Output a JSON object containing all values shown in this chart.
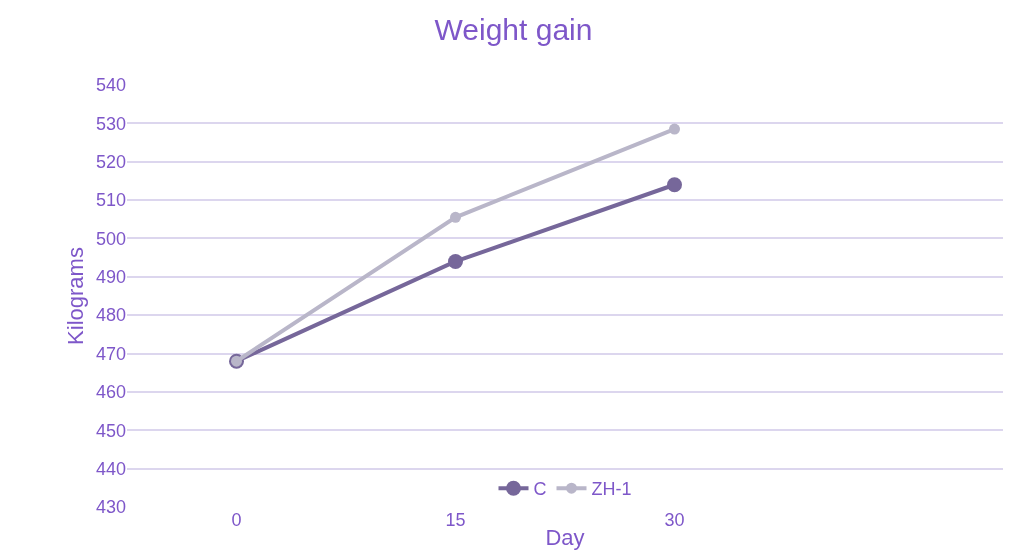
{
  "chart_data": {
    "type": "line",
    "title": "Weight gain",
    "xlabel": "Day",
    "ylabel": "Kilograms",
    "categories": [
      "0",
      "15",
      "30",
      null
    ],
    "series": [
      {
        "name": "C",
        "color": "#76679a",
        "values": [
          468,
          494,
          514,
          null
        ]
      },
      {
        "name": "ZH-1",
        "color": "#b9b6c9",
        "values": [
          468,
          505.5,
          528.5,
          null
        ]
      }
    ],
    "ylim": [
      430,
      540
    ],
    "yticks": [
      430,
      440,
      450,
      460,
      470,
      480,
      490,
      500,
      510,
      520,
      530,
      540
    ],
    "grid": "y",
    "legend": "bottom",
    "marker": "circle",
    "line_style": "solid"
  }
}
